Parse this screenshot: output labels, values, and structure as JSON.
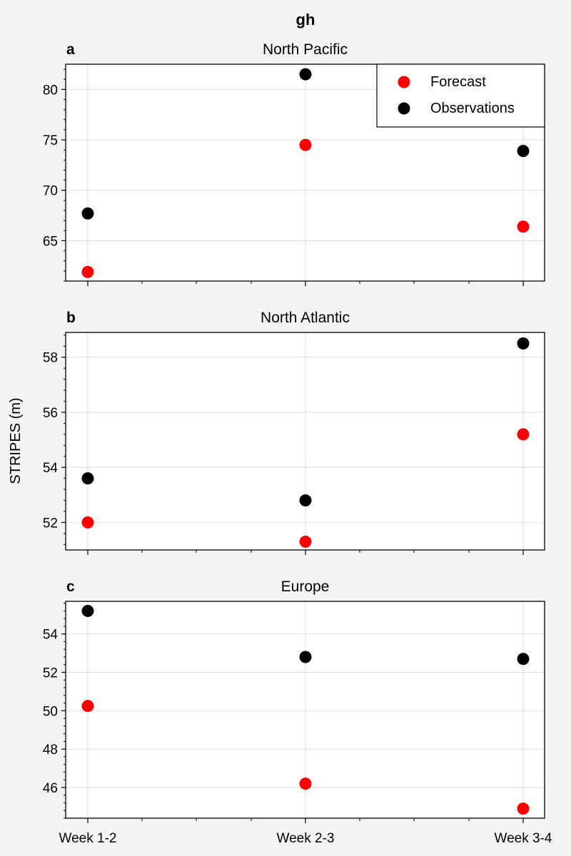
{
  "figure": {
    "suptitle": "gh",
    "ylabel": "STRIPES (m)",
    "x_categories": [
      "Week 1-2",
      "Week 2-3",
      "Week 3-4"
    ]
  },
  "legend": {
    "placement": "upper-right of panel a",
    "entries": [
      {
        "label": "Forecast",
        "color": "#ff0000"
      },
      {
        "label": "Observations",
        "color": "#000000"
      }
    ]
  },
  "chart_data": [
    {
      "type": "scatter",
      "panel_letter": "a",
      "title": "North Pacific",
      "categories": [
        "Week 1-2",
        "Week 2-3",
        "Week 3-4"
      ],
      "series": [
        {
          "name": "Forecast",
          "color": "#ff0000",
          "values": [
            61.9,
            74.5,
            66.4
          ]
        },
        {
          "name": "Observations",
          "color": "#000000",
          "values": [
            67.7,
            81.5,
            73.9
          ]
        }
      ],
      "ylim": [
        61.0,
        82.5
      ],
      "yticks": [
        65,
        70,
        75,
        80
      ],
      "yminor_step": 1,
      "grid": true
    },
    {
      "type": "scatter",
      "panel_letter": "b",
      "title": "North Atlantic",
      "categories": [
        "Week 1-2",
        "Week 2-3",
        "Week 3-4"
      ],
      "series": [
        {
          "name": "Forecast",
          "color": "#ff0000",
          "values": [
            52.0,
            51.3,
            55.2
          ]
        },
        {
          "name": "Observations",
          "color": "#000000",
          "values": [
            53.6,
            52.8,
            58.5
          ]
        }
      ],
      "ylim": [
        51.0,
        58.9
      ],
      "yticks": [
        52,
        54,
        56,
        58
      ],
      "yminor_step": 0.4,
      "grid": true
    },
    {
      "type": "scatter",
      "panel_letter": "c",
      "title": "Europe",
      "categories": [
        "Week 1-2",
        "Week 2-3",
        "Week 3-4"
      ],
      "series": [
        {
          "name": "Forecast",
          "color": "#ff0000",
          "values": [
            50.25,
            46.2,
            44.9
          ]
        },
        {
          "name": "Observations",
          "color": "#000000",
          "values": [
            55.2,
            52.8,
            52.7
          ]
        }
      ],
      "ylim": [
        44.4,
        55.7
      ],
      "yticks": [
        46,
        48,
        50,
        52,
        54
      ],
      "yminor_step": 0.4,
      "grid": true
    }
  ]
}
